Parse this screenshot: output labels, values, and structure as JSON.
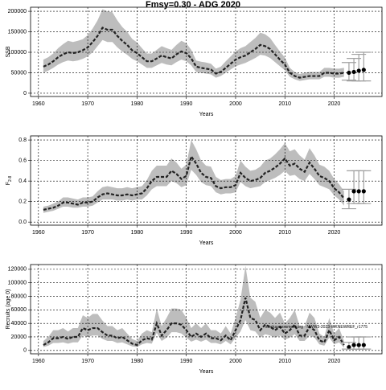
{
  "chart_data": [
    {
      "type": "line",
      "title": "Fmsy=0.30 - ADG 2020",
      "xlabel": "Years",
      "ylabel": "SSB",
      "xlim": [
        1958.4,
        2029.7
      ],
      "xticks": [
        1960,
        1970,
        1980,
        1990,
        2000,
        2010,
        2020
      ],
      "ylim": [
        -8000,
        210000
      ],
      "yticks": [
        0,
        50000,
        100000,
        150000,
        200000
      ],
      "grid": true,
      "band_color": "#bdbdbd",
      "line_color": "#222222",
      "proj_color": "#a0a0a0",
      "x": [
        1961,
        1962,
        1963,
        1964,
        1965,
        1966,
        1967,
        1968,
        1969,
        1970,
        1971,
        1972,
        1973,
        1974,
        1975,
        1976,
        1977,
        1978,
        1979,
        1980,
        1981,
        1982,
        1983,
        1984,
        1985,
        1986,
        1987,
        1988,
        1989,
        1990,
        1991,
        1992,
        1993,
        1994,
        1995,
        1996,
        1997,
        1998,
        1999,
        2000,
        2001,
        2002,
        2003,
        2004,
        2005,
        2006,
        2007,
        2008,
        2009,
        2010,
        2011,
        2012,
        2013,
        2014,
        2015,
        2016,
        2017,
        2018,
        2019,
        2020,
        2021,
        2022
      ],
      "values": [
        65000,
        70000,
        78000,
        88000,
        95000,
        100000,
        98000,
        100000,
        105000,
        112000,
        125000,
        140000,
        160000,
        155000,
        155000,
        140000,
        128000,
        118000,
        105000,
        98000,
        88000,
        78000,
        78000,
        85000,
        92000,
        88000,
        85000,
        95000,
        102000,
        98000,
        85000,
        65000,
        62000,
        60000,
        58000,
        48000,
        52000,
        62000,
        72000,
        82000,
        88000,
        92000,
        100000,
        108000,
        118000,
        115000,
        108000,
        95000,
        82000,
        70000,
        50000,
        42000,
        38000,
        40000,
        42000,
        42000,
        42000,
        50000,
        50000,
        48000,
        48000,
        50000
      ],
      "lower": [
        50000,
        55000,
        62000,
        70000,
        76000,
        80000,
        78000,
        80000,
        84000,
        90000,
        100000,
        115000,
        130000,
        125000,
        125000,
        112000,
        102000,
        94000,
        84000,
        78000,
        70000,
        62000,
        62000,
        68000,
        74000,
        70000,
        68000,
        76000,
        82000,
        78000,
        68000,
        52000,
        50000,
        48000,
        46000,
        38000,
        42000,
        50000,
        58000,
        66000,
        70000,
        74000,
        80000,
        86000,
        94000,
        92000,
        86000,
        76000,
        66000,
        56000,
        40000,
        34000,
        30000,
        32000,
        34000,
        34000,
        34000,
        40000,
        40000,
        38000,
        38000,
        40000
      ],
      "upper": [
        82000,
        88000,
        97000,
        110000,
        120000,
        128000,
        125000,
        128000,
        132000,
        142000,
        158000,
        178000,
        205000,
        200000,
        198000,
        178000,
        162000,
        150000,
        133000,
        124000,
        110000,
        97000,
        97000,
        106000,
        115000,
        110000,
        106000,
        118000,
        128000,
        122000,
        106000,
        80000,
        77000,
        75000,
        72000,
        60000,
        65000,
        78000,
        90000,
        102000,
        110000,
        115000,
        125000,
        135000,
        148000,
        144000,
        135000,
        118000,
        102000,
        87000,
        62000,
        52000,
        47000,
        50000,
        52000,
        52000,
        52000,
        62000,
        62000,
        60000,
        60000,
        62000
      ],
      "proj_x": [
        2023,
        2024,
        2025,
        2026
      ],
      "proj_values": [
        50000,
        52000,
        55000,
        57000
      ],
      "proj_lower": [
        32000,
        30000,
        30000,
        30000
      ],
      "proj_upper": [
        75000,
        85000,
        95000,
        100000
      ]
    },
    {
      "type": "line",
      "xlabel": "Years",
      "ylabel": "F",
      "ylabel_subscript": "2-8",
      "xlim": [
        1958.4,
        2029.7
      ],
      "xticks": [
        1960,
        1970,
        1980,
        1990,
        2000,
        2010,
        2020
      ],
      "ylim": [
        -0.03,
        0.84
      ],
      "yticks": [
        {
          "value": 0,
          "label": "0.0"
        },
        0.2,
        0.4,
        0.6,
        0.8
      ],
      "grid": true,
      "band_color": "#bdbdbd",
      "line_color": "#222222",
      "proj_color": "#a0a0a0",
      "x": [
        1961,
        1962,
        1963,
        1964,
        1965,
        1966,
        1967,
        1968,
        1969,
        1970,
        1971,
        1972,
        1973,
        1974,
        1975,
        1976,
        1977,
        1978,
        1979,
        1980,
        1981,
        1982,
        1983,
        1984,
        1985,
        1986,
        1987,
        1988,
        1989,
        1990,
        1991,
        1992,
        1993,
        1994,
        1995,
        1996,
        1997,
        1998,
        1999,
        2000,
        2001,
        2002,
        2003,
        2004,
        2005,
        2006,
        2007,
        2008,
        2009,
        2010,
        2011,
        2012,
        2013,
        2014,
        2015,
        2016,
        2017,
        2018,
        2019,
        2020,
        2021,
        2022
      ],
      "values": [
        0.12,
        0.13,
        0.14,
        0.16,
        0.19,
        0.19,
        0.18,
        0.17,
        0.19,
        0.19,
        0.2,
        0.24,
        0.27,
        0.28,
        0.27,
        0.26,
        0.26,
        0.27,
        0.26,
        0.27,
        0.28,
        0.33,
        0.4,
        0.44,
        0.44,
        0.44,
        0.5,
        0.47,
        0.42,
        0.45,
        0.64,
        0.57,
        0.48,
        0.44,
        0.43,
        0.35,
        0.33,
        0.34,
        0.34,
        0.36,
        0.48,
        0.43,
        0.4,
        0.41,
        0.43,
        0.48,
        0.5,
        0.53,
        0.57,
        0.62,
        0.55,
        0.57,
        0.52,
        0.49,
        0.58,
        0.52,
        0.45,
        0.43,
        0.4,
        0.33,
        0.29,
        0.23
      ],
      "lower": [
        0.09,
        0.1,
        0.11,
        0.13,
        0.15,
        0.15,
        0.14,
        0.14,
        0.15,
        0.15,
        0.16,
        0.19,
        0.22,
        0.22,
        0.22,
        0.21,
        0.21,
        0.22,
        0.21,
        0.22,
        0.22,
        0.26,
        0.32,
        0.35,
        0.35,
        0.35,
        0.4,
        0.38,
        0.34,
        0.36,
        0.51,
        0.46,
        0.39,
        0.36,
        0.35,
        0.29,
        0.27,
        0.28,
        0.28,
        0.29,
        0.39,
        0.35,
        0.33,
        0.34,
        0.35,
        0.39,
        0.41,
        0.43,
        0.46,
        0.5,
        0.45,
        0.46,
        0.42,
        0.4,
        0.47,
        0.42,
        0.36,
        0.34,
        0.32,
        0.26,
        0.22,
        0.16
      ],
      "upper": [
        0.15,
        0.16,
        0.18,
        0.2,
        0.24,
        0.24,
        0.23,
        0.22,
        0.24,
        0.24,
        0.25,
        0.3,
        0.34,
        0.35,
        0.34,
        0.33,
        0.33,
        0.34,
        0.33,
        0.34,
        0.35,
        0.41,
        0.5,
        0.55,
        0.55,
        0.55,
        0.62,
        0.58,
        0.52,
        0.56,
        0.8,
        0.71,
        0.6,
        0.55,
        0.54,
        0.44,
        0.41,
        0.42,
        0.42,
        0.45,
        0.6,
        0.54,
        0.5,
        0.51,
        0.54,
        0.6,
        0.62,
        0.66,
        0.71,
        0.77,
        0.69,
        0.71,
        0.65,
        0.61,
        0.72,
        0.65,
        0.56,
        0.54,
        0.5,
        0.42,
        0.37,
        0.3
      ],
      "proj_x": [
        2023,
        2024,
        2025,
        2026
      ],
      "proj_values": [
        0.22,
        0.3,
        0.3,
        0.3
      ],
      "proj_lower": [
        0.13,
        0.18,
        0.18,
        0.18
      ],
      "proj_upper": [
        0.32,
        0.5,
        0.5,
        0.5
      ]
    },
    {
      "type": "line",
      "xlabel": "Years",
      "ylabel": "Recruits (age 0)",
      "annotation": "stockassessment.org - NWW3-2023-WKNEWREF_r1775",
      "xlim": [
        1958.4,
        2029.7
      ],
      "xticks": [
        1960,
        1970,
        1980,
        1990,
        2000,
        2010,
        2020
      ],
      "ylim": [
        -5000,
        127000
      ],
      "yticks": [
        0,
        20000,
        40000,
        60000,
        80000,
        100000,
        120000
      ],
      "grid": true,
      "band_color": "#bdbdbd",
      "line_color": "#222222",
      "proj_color": "#a0a0a0",
      "x": [
        1961,
        1962,
        1963,
        1964,
        1965,
        1966,
        1967,
        1968,
        1969,
        1970,
        1971,
        1972,
        1973,
        1974,
        1975,
        1976,
        1977,
        1978,
        1979,
        1980,
        1981,
        1982,
        1983,
        1984,
        1985,
        1986,
        1987,
        1988,
        1989,
        1990,
        1991,
        1992,
        1993,
        1994,
        1995,
        1996,
        1997,
        1998,
        1999,
        2000,
        2001,
        2002,
        2003,
        2004,
        2005,
        2006,
        2007,
        2008,
        2009,
        2010,
        2011,
        2012,
        2013,
        2014,
        2015,
        2016,
        2017,
        2018,
        2019,
        2020,
        2021,
        2022
      ],
      "values": [
        8000,
        12000,
        18000,
        18000,
        20000,
        17000,
        20000,
        20000,
        33000,
        30000,
        33000,
        33000,
        27000,
        22000,
        22000,
        18000,
        20000,
        15000,
        10000,
        8000,
        15000,
        18000,
        16000,
        40000,
        22000,
        30000,
        40000,
        40000,
        38000,
        30000,
        20000,
        25000,
        20000,
        25000,
        18000,
        18000,
        15000,
        22000,
        15000,
        30000,
        45000,
        78000,
        48000,
        45000,
        30000,
        38000,
        35000,
        30000,
        35000,
        25000,
        30000,
        38000,
        22000,
        22000,
        35000,
        30000,
        15000,
        12000,
        30000,
        15000,
        20000,
        8000
      ],
      "lower": [
        5000,
        7000,
        11000,
        11000,
        12000,
        10000,
        12000,
        12000,
        22000,
        20000,
        22000,
        22000,
        17000,
        14000,
        14000,
        11000,
        12000,
        9000,
        6000,
        5000,
        9000,
        11000,
        10000,
        26000,
        14000,
        19000,
        27000,
        27000,
        25000,
        19000,
        13000,
        16000,
        13000,
        16000,
        11000,
        11000,
        9000,
        14000,
        9000,
        19000,
        28000,
        45000,
        30000,
        28000,
        19000,
        24000,
        22000,
        19000,
        22000,
        16000,
        19000,
        24000,
        14000,
        14000,
        22000,
        19000,
        9000,
        7000,
        19000,
        9000,
        12000,
        4000
      ],
      "upper": [
        14000,
        20000,
        30000,
        30000,
        33000,
        28000,
        33000,
        33000,
        52000,
        48000,
        54000,
        54000,
        44000,
        36000,
        36000,
        30000,
        33000,
        25000,
        17000,
        14000,
        25000,
        30000,
        27000,
        62000,
        36000,
        48000,
        62000,
        62000,
        60000,
        48000,
        33000,
        40000,
        33000,
        40000,
        30000,
        30000,
        25000,
        36000,
        25000,
        48000,
        75000,
        125000,
        78000,
        72000,
        48000,
        60000,
        56000,
        48000,
        56000,
        40000,
        48000,
        60000,
        36000,
        36000,
        56000,
        48000,
        25000,
        20000,
        48000,
        25000,
        33000,
        14000
      ],
      "proj_x": [
        2023,
        2024,
        2025,
        2026
      ],
      "proj_values": [
        5000,
        8000,
        8000,
        8000
      ],
      "proj_lower": [
        2000,
        2000,
        2000,
        2000
      ],
      "proj_upper": [
        12000,
        20000,
        20000,
        20000
      ]
    }
  ]
}
